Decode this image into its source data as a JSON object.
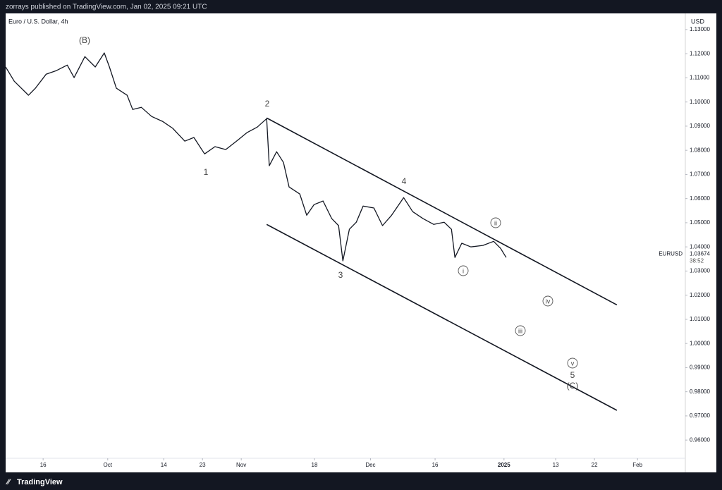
{
  "header": {
    "publisher": "zorrays published on TradingView.com, Jan 02, 2025 09:21 UTC"
  },
  "footer": {
    "brand": "TradingView"
  },
  "chart_data": {
    "type": "line",
    "title": "Euro / U.S. Dollar, 4h",
    "currency": "USD",
    "symbol": "EURUSD",
    "last_price": 1.03674,
    "countdown": "38:52",
    "color": "#131722",
    "x": [
      7.3,
      9.3,
      12.6,
      14.2,
      16.7,
      19.1,
      21.6,
      23.2,
      25.7,
      28.1,
      30.2,
      31.4,
      33.0,
      35.5,
      36.8,
      38.8,
      41.2,
      43.7,
      46.1,
      48.9,
      51.0,
      53.5,
      55.9,
      58.4,
      60.9,
      63.3,
      65.7,
      67.9,
      68.5,
      70.2,
      71.8,
      73.1,
      75.6,
      77.2,
      78.9,
      81.0,
      83.0,
      84.6,
      85.6,
      87.1,
      88.7,
      90.3,
      92.8,
      94.8,
      96.9,
      99.7,
      101.8,
      104.2,
      106.7,
      109.1,
      110.8,
      111.6,
      113.2,
      115.3,
      118.1,
      120.6,
      122.2,
      123.5
    ],
    "values": [
      1.1145,
      1.1086,
      1.1028,
      1.1057,
      1.1115,
      1.113,
      1.1153,
      1.1101,
      1.1188,
      1.1145,
      1.1203,
      1.1145,
      1.1057,
      1.1028,
      1.0969,
      1.0978,
      1.094,
      1.092,
      1.0891,
      1.0838,
      1.0853,
      1.0785,
      1.0815,
      1.0803,
      1.0838,
      1.0873,
      1.0896,
      1.0931,
      1.0736,
      1.0794,
      1.075,
      1.0648,
      1.0619,
      1.0531,
      1.0575,
      1.059,
      1.0517,
      1.0488,
      1.0342,
      1.0473,
      1.0502,
      1.0569,
      1.0561,
      1.0488,
      1.0531,
      1.0604,
      1.0546,
      1.0517,
      1.0493,
      1.0502,
      1.0473,
      1.0356,
      1.0415,
      1.04,
      1.0406,
      1.0423,
      1.0394,
      1.0356
    ],
    "trendlines": [
      {
        "x": [
          67.9,
          149.2
        ],
        "values": [
          1.0934,
          1.016
        ]
      },
      {
        "x": [
          67.9,
          149.2
        ],
        "values": [
          1.0493,
          0.9723
        ]
      }
    ],
    "annotations": [
      "(B)",
      "1",
      "2",
      "3",
      "4",
      "i",
      "ii",
      "iii",
      "iv",
      "v",
      "5",
      "(C)"
    ],
    "xlim": [
      7.3,
      165.1
    ],
    "xticks": [
      16,
      {
        "value": 31,
        "label": "Oct"
      },
      {
        "value": 44,
        "label": "14"
      },
      {
        "value": 53,
        "label": "23"
      },
      {
        "value": 62,
        "label": "Nov"
      },
      {
        "value": 79,
        "label": "18"
      },
      {
        "value": 92,
        "label": "Dec"
      },
      {
        "value": 107,
        "label": "16"
      },
      {
        "value": 123,
        "label": "2025"
      },
      {
        "value": 135,
        "label": "13"
      },
      {
        "value": 144,
        "label": "22"
      },
      {
        "value": 154,
        "label": "Feb"
      }
    ],
    "ylim": [
      0.9472,
      1.1364
    ],
    "yticks": [
      {
        "value": 0.96,
        "label": "0.96000"
      },
      {
        "value": 0.97,
        "label": "0.97000"
      },
      {
        "value": 0.98,
        "label": "0.98000"
      },
      {
        "value": 0.99,
        "label": "0.99000"
      },
      {
        "value": 1.0,
        "label": "1.00000"
      },
      {
        "value": 1.01,
        "label": "1.01000"
      },
      {
        "value": 1.02,
        "label": "1.02000"
      },
      {
        "value": 1.03,
        "label": "1.03000"
      },
      {
        "value": 1.04,
        "label": "1.04000"
      },
      {
        "value": 1.05,
        "label": "1.05000"
      },
      {
        "value": 1.06,
        "label": "1.06000"
      },
      {
        "value": 1.07,
        "label": "1.07000"
      },
      {
        "value": 1.08,
        "label": "1.08000"
      },
      {
        "value": 1.09,
        "label": "1.09000"
      },
      {
        "value": 1.1,
        "label": "1.10000"
      },
      {
        "value": 1.11,
        "label": "1.11000"
      },
      {
        "value": 1.12,
        "label": "1.12000"
      },
      {
        "value": 1.13,
        "label": "1.13000"
      }
    ]
  }
}
